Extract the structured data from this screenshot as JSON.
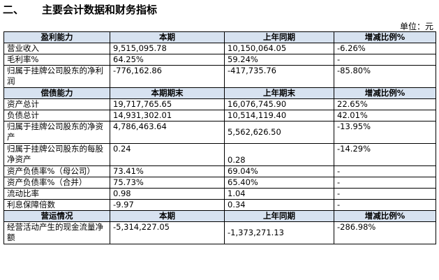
{
  "heading": {
    "number": "二、",
    "title": "主要会计数据和财务指标"
  },
  "unit": "单位：元",
  "sections": [
    {
      "header": [
        "盈利能力",
        "本期",
        "上年同期",
        "增减比例%"
      ],
      "rows": [
        [
          "营业收入",
          "9,515,095.78",
          "10,150,064.05",
          "-6.26%"
        ],
        [
          "毛利率%",
          "64.25%",
          "59.24%",
          "-"
        ],
        [
          "归属于挂牌公司股东的净利润",
          "-776,162.86",
          "-417,735.76",
          "-85.80%"
        ]
      ]
    },
    {
      "header": [
        "偿债能力",
        "本期期末",
        "上年期末",
        "增减比例%"
      ],
      "rows": [
        [
          "资产总计",
          "19,717,765.65",
          "16,076,745.90",
          "22.65%"
        ],
        [
          "负债总计",
          "14,931,302.01",
          "10,514,119.40",
          "42.01%"
        ],
        [
          "归属于挂牌公司股东的净资产",
          "4,786,463.64",
          "5,562,626.50",
          "-13.95%"
        ],
        [
          "归属于挂牌公司股东的每股净资产",
          "0.24",
          "0.28",
          "-14.29%"
        ],
        [
          "资产负债率%（母公司）",
          "73.41%",
          "69.04%",
          "-"
        ],
        [
          "资产负债率%（合并）",
          "75.73%",
          "65.40%",
          "-"
        ],
        [
          "流动比率",
          "0.98",
          "1.04",
          "-"
        ],
        [
          "利息保障倍数",
          "-9.97",
          "0.34",
          "-"
        ]
      ]
    },
    {
      "header": [
        "营运情况",
        "本期",
        "上年同期",
        "增减比例%"
      ],
      "rows": [
        [
          "经营活动产生的现金流量净额",
          "-5,314,227.05",
          "-1,373,271.13",
          "-286.98%"
        ]
      ]
    }
  ]
}
